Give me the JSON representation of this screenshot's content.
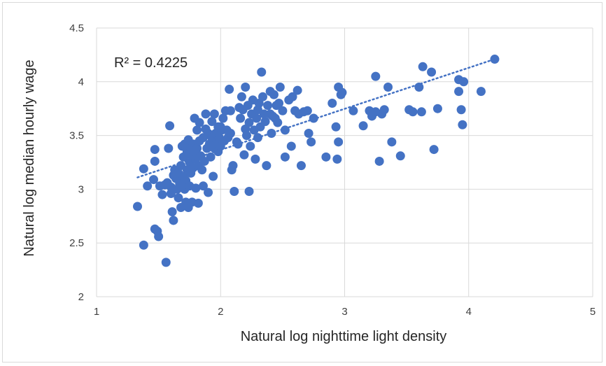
{
  "chart_data": {
    "type": "scatter",
    "xlabel": "Natural log nighttime light density",
    "ylabel": "Natural log median hourly wage",
    "xlim": [
      1,
      5
    ],
    "ylim": [
      2,
      4.5
    ],
    "xticks": [
      1,
      2,
      3,
      4,
      5
    ],
    "yticks": [
      2,
      2.5,
      3,
      3.5,
      4,
      4.5
    ],
    "ytick_labels": [
      "2",
      "2.5",
      "3",
      "3.5",
      "4",
      "4.5"
    ],
    "grid": true,
    "annotation": "R² = 0.4225",
    "point_color": "#4472C4",
    "trendline": {
      "type": "linear",
      "x": [
        1.33,
        4.21
      ],
      "y": [
        3.11,
        4.21
      ],
      "style": "dotted",
      "color": "#4472C4"
    },
    "points": [
      [
        1.33,
        2.84
      ],
      [
        1.38,
        3.19
      ],
      [
        1.38,
        2.48
      ],
      [
        1.41,
        3.03
      ],
      [
        1.46,
        3.09
      ],
      [
        1.47,
        3.37
      ],
      [
        1.47,
        3.26
      ],
      [
        1.47,
        2.63
      ],
      [
        1.49,
        2.61
      ],
      [
        1.5,
        2.56
      ],
      [
        1.51,
        3.03
      ],
      [
        1.53,
        2.95
      ],
      [
        1.55,
        3.04
      ],
      [
        1.56,
        2.32
      ],
      [
        1.57,
        3.06
      ],
      [
        1.58,
        3.38
      ],
      [
        1.59,
        3.59
      ],
      [
        1.6,
        3.02
      ],
      [
        1.6,
        2.96
      ],
      [
        1.61,
        2.79
      ],
      [
        1.62,
        2.71
      ],
      [
        1.62,
        3.13
      ],
      [
        1.63,
        3.18
      ],
      [
        1.64,
        3.1
      ],
      [
        1.65,
        3.0
      ],
      [
        1.66,
        2.92
      ],
      [
        1.66,
        3.15
      ],
      [
        1.67,
        3.05
      ],
      [
        1.68,
        3.22
      ],
      [
        1.68,
        2.83
      ],
      [
        1.69,
        3.4
      ],
      [
        1.7,
        3.3
      ],
      [
        1.7,
        3.12
      ],
      [
        1.71,
        3.42
      ],
      [
        1.71,
        3.0
      ],
      [
        1.72,
        2.88
      ],
      [
        1.72,
        3.08
      ],
      [
        1.73,
        3.35
      ],
      [
        1.73,
        3.18
      ],
      [
        1.74,
        3.46
      ],
      [
        1.74,
        2.83
      ],
      [
        1.75,
        3.25
      ],
      [
        1.75,
        3.03
      ],
      [
        1.76,
        3.38
      ],
      [
        1.76,
        3.15
      ],
      [
        1.77,
        3.3
      ],
      [
        1.77,
        2.88
      ],
      [
        1.78,
        3.42
      ],
      [
        1.78,
        3.2
      ],
      [
        1.79,
        3.66
      ],
      [
        1.79,
        3.35
      ],
      [
        1.8,
        3.28
      ],
      [
        1.8,
        3.01
      ],
      [
        1.81,
        3.55
      ],
      [
        1.81,
        3.38
      ],
      [
        1.82,
        3.22
      ],
      [
        1.82,
        2.87
      ],
      [
        1.83,
        3.45
      ],
      [
        1.83,
        3.62
      ],
      [
        1.84,
        3.31
      ],
      [
        1.85,
        3.18
      ],
      [
        1.86,
        3.48
      ],
      [
        1.86,
        3.03
      ],
      [
        1.87,
        3.26
      ],
      [
        1.88,
        3.56
      ],
      [
        1.88,
        3.7
      ],
      [
        1.89,
        3.38
      ],
      [
        1.9,
        3.52
      ],
      [
        1.9,
        2.97
      ],
      [
        1.91,
        3.42
      ],
      [
        1.92,
        3.3
      ],
      [
        1.93,
        3.63
      ],
      [
        1.93,
        3.48
      ],
      [
        1.94,
        3.12
      ],
      [
        1.95,
        3.38
      ],
      [
        1.95,
        3.7
      ],
      [
        1.96,
        3.52
      ],
      [
        1.97,
        3.44
      ],
      [
        1.98,
        3.58
      ],
      [
        1.98,
        3.35
      ],
      [
        1.99,
        3.48
      ],
      [
        2.0,
        3.58
      ],
      [
        2.0,
        3.4
      ],
      [
        2.01,
        3.55
      ],
      [
        2.02,
        3.66
      ],
      [
        2.03,
        3.45
      ],
      [
        2.04,
        3.73
      ],
      [
        2.05,
        3.55
      ],
      [
        2.06,
        3.48
      ],
      [
        2.07,
        3.93
      ],
      [
        2.08,
        3.73
      ],
      [
        2.08,
        3.52
      ],
      [
        2.09,
        3.18
      ],
      [
        2.1,
        3.22
      ],
      [
        2.11,
        2.98
      ],
      [
        2.13,
        3.44
      ],
      [
        2.14,
        3.42
      ],
      [
        2.15,
        3.76
      ],
      [
        2.16,
        3.66
      ],
      [
        2.17,
        3.86
      ],
      [
        2.18,
        3.74
      ],
      [
        2.19,
        3.32
      ],
      [
        2.2,
        3.56
      ],
      [
        2.2,
        3.95
      ],
      [
        2.21,
        3.5
      ],
      [
        2.22,
        3.78
      ],
      [
        2.23,
        2.98
      ],
      [
        2.23,
        3.62
      ],
      [
        2.24,
        3.4
      ],
      [
        2.25,
        3.7
      ],
      [
        2.26,
        3.83
      ],
      [
        2.27,
        3.55
      ],
      [
        2.28,
        3.28
      ],
      [
        2.29,
        3.66
      ],
      [
        2.3,
        3.74
      ],
      [
        2.3,
        3.48
      ],
      [
        2.31,
        3.8
      ],
      [
        2.32,
        3.58
      ],
      [
        2.33,
        4.09
      ],
      [
        2.34,
        3.86
      ],
      [
        2.35,
        3.7
      ],
      [
        2.36,
        3.63
      ],
      [
        2.37,
        3.22
      ],
      [
        2.38,
        3.78
      ],
      [
        2.4,
        3.91
      ],
      [
        2.4,
        3.7
      ],
      [
        2.41,
        3.52
      ],
      [
        2.42,
        3.68
      ],
      [
        2.43,
        3.88
      ],
      [
        2.44,
        3.66
      ],
      [
        2.45,
        3.78
      ],
      [
        2.46,
        3.62
      ],
      [
        2.47,
        3.8
      ],
      [
        2.48,
        3.95
      ],
      [
        2.5,
        3.73
      ],
      [
        2.52,
        3.55
      ],
      [
        2.52,
        3.3
      ],
      [
        2.55,
        3.83
      ],
      [
        2.57,
        3.4
      ],
      [
        2.58,
        3.86
      ],
      [
        2.6,
        3.73
      ],
      [
        2.62,
        3.92
      ],
      [
        2.63,
        3.7
      ],
      [
        2.65,
        3.22
      ],
      [
        2.67,
        3.72
      ],
      [
        2.7,
        3.73
      ],
      [
        2.71,
        3.52
      ],
      [
        2.73,
        3.44
      ],
      [
        2.75,
        3.66
      ],
      [
        2.85,
        3.3
      ],
      [
        2.9,
        3.8
      ],
      [
        2.93,
        3.58
      ],
      [
        2.94,
        3.28
      ],
      [
        2.95,
        3.44
      ],
      [
        2.95,
        3.95
      ],
      [
        2.97,
        3.88
      ],
      [
        2.98,
        3.9
      ],
      [
        3.07,
        3.73
      ],
      [
        3.15,
        3.59
      ],
      [
        3.2,
        3.73
      ],
      [
        3.22,
        3.68
      ],
      [
        3.25,
        3.72
      ],
      [
        3.25,
        4.05
      ],
      [
        3.28,
        3.26
      ],
      [
        3.3,
        3.7
      ],
      [
        3.32,
        3.74
      ],
      [
        3.35,
        3.95
      ],
      [
        3.38,
        3.44
      ],
      [
        3.45,
        3.31
      ],
      [
        3.52,
        3.74
      ],
      [
        3.55,
        3.72
      ],
      [
        3.6,
        3.95
      ],
      [
        3.62,
        3.72
      ],
      [
        3.63,
        4.14
      ],
      [
        3.7,
        4.09
      ],
      [
        3.72,
        3.37
      ],
      [
        3.75,
        3.75
      ],
      [
        3.92,
        4.02
      ],
      [
        3.92,
        3.91
      ],
      [
        3.94,
        3.74
      ],
      [
        3.95,
        3.6
      ],
      [
        3.96,
        4.0
      ],
      [
        4.1,
        3.91
      ],
      [
        4.21,
        4.21
      ]
    ]
  }
}
